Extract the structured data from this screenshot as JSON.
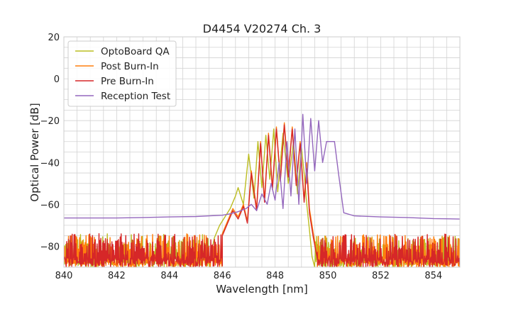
{
  "colors": {
    "optoboard_qa": "#bcbd22",
    "post_burn_in": "#ff7f0e",
    "pre_burn_in": "#d62728",
    "reception_test": "#9467bd",
    "grid": "#d3d3d3",
    "background": "#ffffff"
  },
  "chart_data": {
    "type": "line",
    "title": "D4454 V20274 Ch. 3",
    "xlabel": "Wavelength [nm]",
    "ylabel": "Optical Power [dB]",
    "xlim": [
      840,
      855
    ],
    "ylim": [
      -90,
      20
    ],
    "xticks": [
      840,
      842,
      844,
      846,
      848,
      850,
      852,
      854
    ],
    "yticks": [
      20,
      0,
      -20,
      -40,
      -60,
      -80
    ],
    "ytick_labels": [
      "20",
      "0",
      "−20",
      "−40",
      "−60",
      "−80"
    ],
    "grid": true,
    "legend_position": "top-left",
    "series": [
      {
        "name": "OptoBoard QA",
        "color_key": "optoboard_qa",
        "noise_floor": {
          "x_range": [
            840,
            845.5
          ],
          "level_range": [
            -90,
            -74
          ]
        },
        "noise_floor_right": {
          "x_range": [
            849.5,
            855
          ],
          "level_range": [
            -90,
            -75
          ]
        },
        "x": [
          845.5,
          845.7,
          845.9,
          846.1,
          846.3,
          846.5,
          846.6,
          846.8,
          847.0,
          847.2,
          847.35,
          847.5,
          847.65,
          847.8,
          847.95,
          848.1,
          848.3,
          848.5,
          848.7,
          848.85,
          849.0,
          849.1,
          849.2,
          849.3,
          849.4,
          849.5
        ],
        "y": [
          -88,
          -76,
          -70,
          -66,
          -62,
          -56,
          -52,
          -60,
          -36,
          -57,
          -30,
          -52,
          -27,
          -48,
          -24,
          -54,
          -26,
          -50,
          -30,
          -55,
          -33,
          -45,
          -60,
          -72,
          -85,
          -90
        ]
      },
      {
        "name": "Post Burn-In",
        "color_key": "post_burn_in",
        "noise_floor": {
          "x_range": [
            840,
            846.0
          ],
          "level_range": [
            -90,
            -74
          ]
        },
        "noise_floor_right": {
          "x_range": [
            849.6,
            855
          ],
          "level_range": [
            -90,
            -74
          ]
        },
        "x": [
          846.0,
          846.2,
          846.4,
          846.6,
          846.8,
          846.95,
          847.1,
          847.3,
          847.45,
          847.6,
          847.75,
          847.9,
          848.05,
          848.2,
          848.35,
          848.5,
          848.65,
          848.8,
          848.95,
          849.1,
          849.2,
          849.3,
          849.45,
          849.6
        ],
        "y": [
          -74,
          -68,
          -62,
          -66,
          -60,
          -68,
          -44,
          -62,
          -30,
          -58,
          -26,
          -52,
          -23,
          -48,
          -21,
          -46,
          -23,
          -50,
          -30,
          -58,
          -40,
          -62,
          -74,
          -85
        ]
      },
      {
        "name": "Pre Burn-In",
        "color_key": "pre_burn_in",
        "noise_floor": {
          "x_range": [
            840,
            846.0
          ],
          "level_range": [
            -90,
            -74
          ]
        },
        "noise_floor_right": {
          "x_range": [
            849.6,
            855
          ],
          "level_range": [
            -90,
            -74
          ]
        },
        "x": [
          846.0,
          846.2,
          846.4,
          846.6,
          846.8,
          846.95,
          847.1,
          847.3,
          847.45,
          847.6,
          847.75,
          847.9,
          848.05,
          848.2,
          848.35,
          848.5,
          848.65,
          848.8,
          848.95,
          849.1,
          849.2,
          849.3,
          849.45,
          849.6
        ],
        "y": [
          -75,
          -69,
          -63,
          -67,
          -61,
          -69,
          -45,
          -63,
          -31,
          -59,
          -27,
          -53,
          -24,
          -49,
          -22,
          -47,
          -24,
          -51,
          -31,
          -59,
          -43,
          -64,
          -76,
          -86
        ]
      },
      {
        "name": "Reception Test",
        "color_key": "reception_test",
        "x": [
          840,
          841,
          842,
          843,
          844,
          845,
          845.5,
          846.0,
          846.3,
          846.6,
          846.9,
          847.1,
          847.3,
          847.5,
          847.7,
          847.85,
          848.0,
          848.15,
          848.3,
          848.45,
          848.6,
          848.75,
          848.9,
          849.05,
          849.2,
          849.35,
          849.5,
          849.65,
          849.8,
          849.95,
          850.1,
          850.25,
          850.4,
          850.6,
          851,
          852,
          853,
          854,
          855
        ],
        "y": [
          -66.5,
          -66.5,
          -66.5,
          -66.3,
          -66.0,
          -65.8,
          -65.5,
          -65.2,
          -64.5,
          -63.5,
          -62.0,
          -60.0,
          -63.0,
          -55.0,
          -60.0,
          -50.0,
          -58.0,
          -40.0,
          -62.0,
          -30.0,
          -56.0,
          -24.0,
          -60.0,
          -17.0,
          -50.0,
          -19.0,
          -44.0,
          -20.0,
          -40.0,
          -30.0,
          -30.0,
          -30.0,
          -45.0,
          -64.0,
          -65.5,
          -66.0,
          -66.3,
          -66.8,
          -67.0
        ]
      }
    ]
  }
}
